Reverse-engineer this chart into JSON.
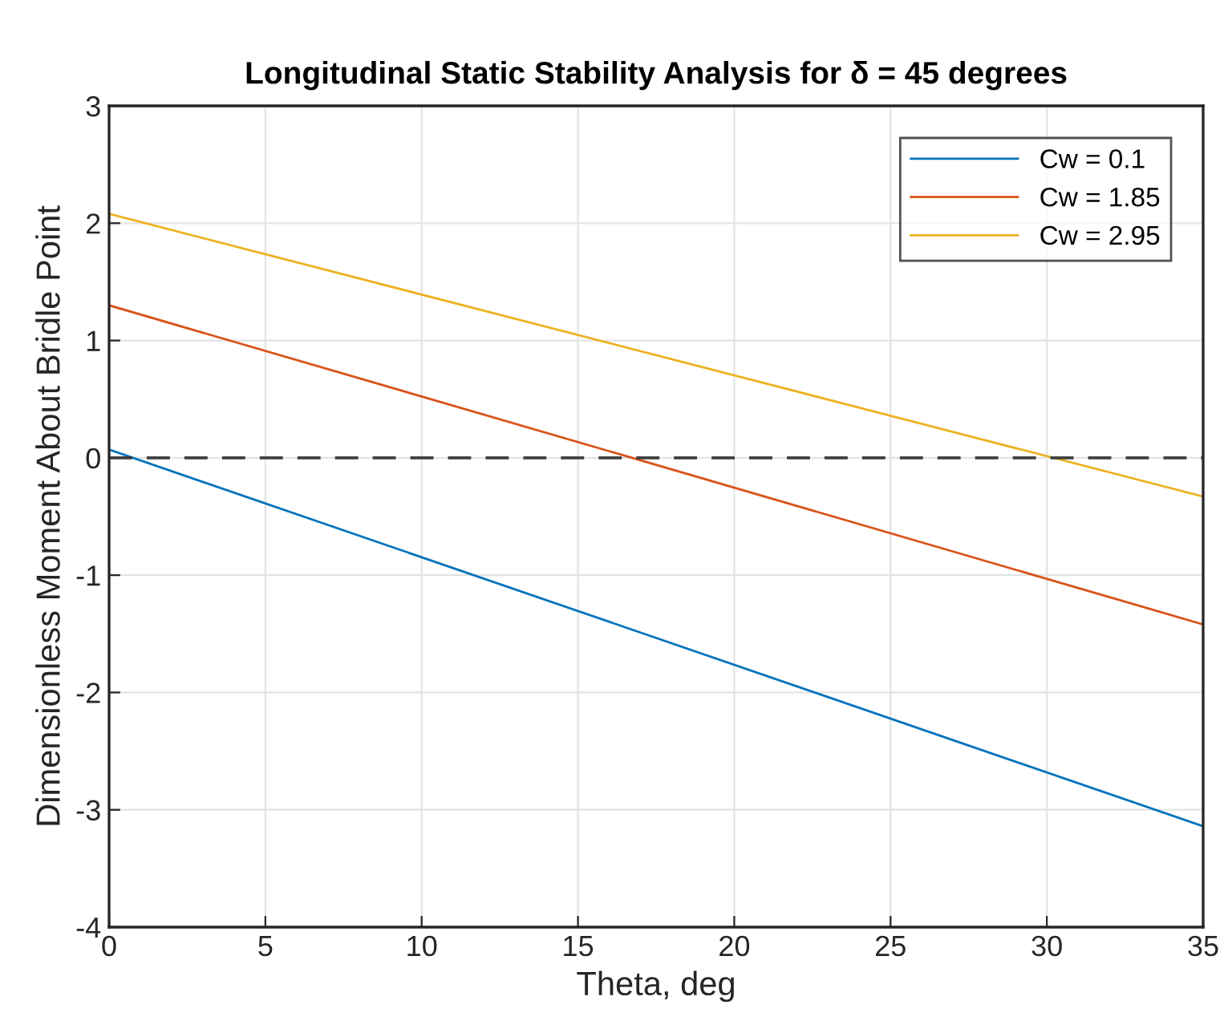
{
  "chart_data": {
    "type": "line",
    "title": "Longitudinal Static Stability Analysis for δ = 45 degrees",
    "xlabel": "Theta, deg",
    "ylabel": "Dimensionless Moment About Bridle Point",
    "x": [
      0,
      35
    ],
    "series": [
      {
        "name": "Cw = 0.1",
        "color": "#0072bd",
        "values": [
          0.07,
          -3.14
        ]
      },
      {
        "name": "Cw = 1.85",
        "color": "#d95319",
        "values": [
          1.3,
          -1.42
        ]
      },
      {
        "name": "Cw = 2.95",
        "color": "#edb120",
        "values": [
          2.08,
          -0.33
        ]
      }
    ],
    "xlim": [
      0,
      35
    ],
    "xticks": [
      0,
      5,
      10,
      15,
      20,
      25,
      30,
      35
    ],
    "ylim": [
      -4,
      3
    ],
    "yticks": [
      -4,
      -3,
      -2,
      -1,
      0,
      1,
      2,
      3
    ],
    "ref_lines": [
      {
        "axis": "y",
        "value": 0,
        "color": "#404040",
        "line_style": "dashed"
      }
    ],
    "grid": true,
    "legend": "top right",
    "marker": "none",
    "line_style": "solid"
  }
}
